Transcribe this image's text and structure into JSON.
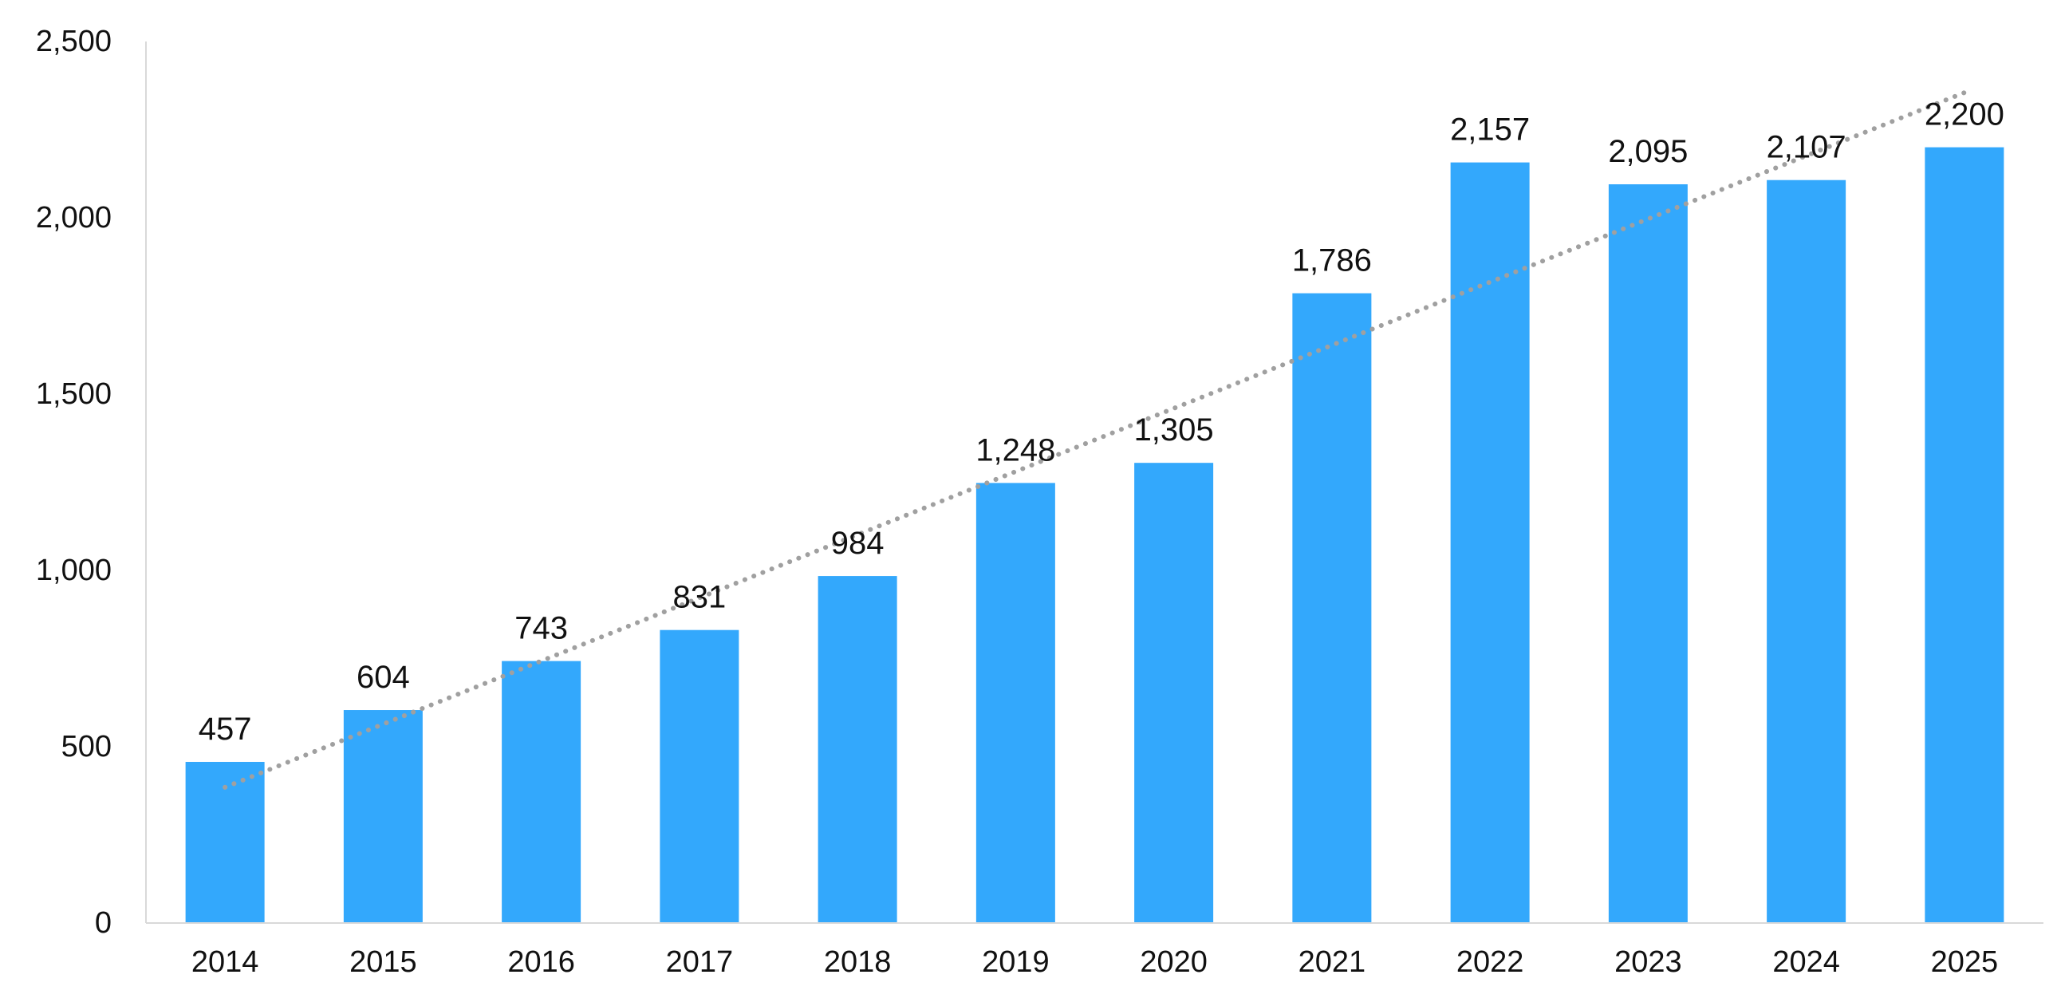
{
  "chart_data": {
    "type": "bar",
    "categories": [
      "2014",
      "2015",
      "2016",
      "2017",
      "2018",
      "2019",
      "2020",
      "2021",
      "2022",
      "2023",
      "2024",
      "2025"
    ],
    "values": [
      457,
      604,
      743,
      831,
      984,
      1248,
      1305,
      1786,
      2157,
      2095,
      2107,
      2200
    ],
    "data_labels": [
      "457",
      "604",
      "743",
      "831",
      "984",
      "1,248",
      "1,305",
      "1,786",
      "2,157",
      "2,095",
      "2,107",
      "2,200"
    ],
    "y_ticks": [
      0,
      500,
      1000,
      1500,
      2000,
      2500
    ],
    "y_tick_labels": [
      "0",
      "500",
      "1,000",
      "1,500",
      "2,000",
      "2,500"
    ],
    "ylim": [
      0,
      2500
    ],
    "grid": false,
    "legend": "none",
    "trendline": {
      "type": "linear",
      "style": "dotted",
      "color": "#a0a0a0",
      "start": 385,
      "end": 2355
    },
    "colors": {
      "bar": "#33a8fc"
    }
  }
}
